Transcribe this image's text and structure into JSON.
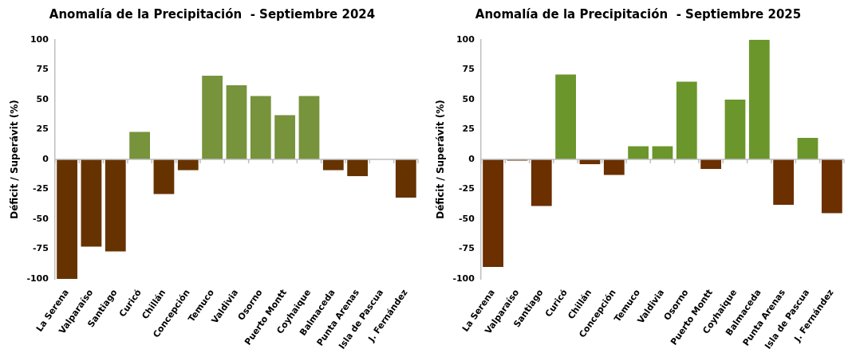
{
  "chart_data": [
    {
      "type": "bar",
      "title": "Anomalía de la Precipitación  - Septiembre 2024",
      "ylabel": "Déficit / Superávit (%)",
      "categories": [
        "La Serena",
        "Valparaíso",
        "Santiago",
        "Curicó",
        "Chillán",
        "Concepción",
        "Temuco",
        "Valdivia",
        "Osorno",
        "Puerto Montt",
        "Coyhaique",
        "Balmaceda",
        "Punta Arenas",
        "Isla de Pascua",
        "J. Fernández"
      ],
      "values": [
        -100,
        -73,
        -77,
        23,
        -29,
        -9,
        70,
        62,
        53,
        37,
        53,
        -9,
        -14,
        0,
        -32
      ],
      "colors": [
        "#663300",
        "#663300",
        "#663300",
        "#77933c",
        "#663300",
        "#663300",
        "#77933c",
        "#77933c",
        "#77933c",
        "#77933c",
        "#77933c",
        "#663300",
        "#663300",
        "#663300",
        "#663300"
      ],
      "ylim": [
        -100,
        100
      ],
      "yticks": [
        -100,
        -75,
        -50,
        -25,
        0,
        25,
        50,
        75,
        100
      ]
    },
    {
      "type": "bar",
      "title": "Anomalía de la Precipitación  - Septiembre 2025",
      "ylabel": "Déficit / Superávit (%)",
      "categories": [
        "La Serena",
        "Valparaíso",
        "Santiago",
        "Curicó",
        "Chillán",
        "Concepción",
        "Temuco",
        "Valdivia",
        "Osorno",
        "Puerto Montt",
        "Coyhaique",
        "Balmaceda",
        "Punta Arenas",
        "Isla de Pascua",
        "J. Fernández"
      ],
      "values": [
        -90,
        -1,
        -39,
        71,
        -4,
        -13,
        11,
        11,
        65,
        -8,
        50,
        100,
        -38,
        18,
        -45
      ],
      "colors": [
        "#6b2f00",
        "#6b2f00",
        "#6b2f00",
        "#6b962b",
        "#6b2f00",
        "#6b2f00",
        "#6b962b",
        "#6b962b",
        "#6b962b",
        "#6b2f00",
        "#6b962b",
        "#6b962b",
        "#6b2f00",
        "#6b962b",
        "#6b2f00"
      ],
      "ylim": [
        -100,
        100
      ],
      "yticks": [
        -100,
        -75,
        -50,
        -25,
        0,
        25,
        50,
        75,
        100
      ]
    }
  ]
}
